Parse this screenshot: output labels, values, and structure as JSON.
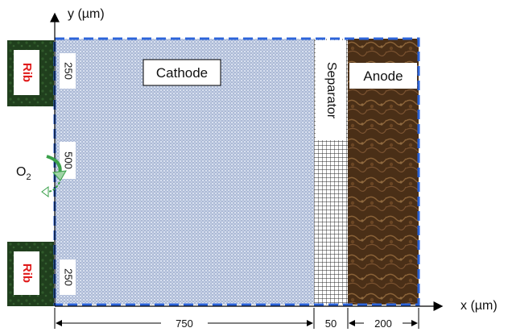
{
  "axes": {
    "y_label": "y (µm)",
    "x_label": "x (µm)"
  },
  "regions": {
    "cathode": "Cathode",
    "separator": "Separator",
    "anode": "Anode",
    "rib_top": "Rib",
    "rib_bottom": "Rib"
  },
  "inlet": {
    "o2_base": "O",
    "o2_sub": "2"
  },
  "vertical_dims": {
    "top": "250",
    "middle": "500",
    "bottom": "250"
  },
  "horizontal_dims": {
    "cathode": "750",
    "separator": "50",
    "anode": "200"
  },
  "colors": {
    "boundary": "#2b63d9",
    "rib_text": "#e01b1b",
    "rib_fill": "#1f3d1c",
    "anode_fill": "#5a3b1e",
    "cathode_fill": "#b8c7e0",
    "arrow_green": "#3aa04a"
  }
}
